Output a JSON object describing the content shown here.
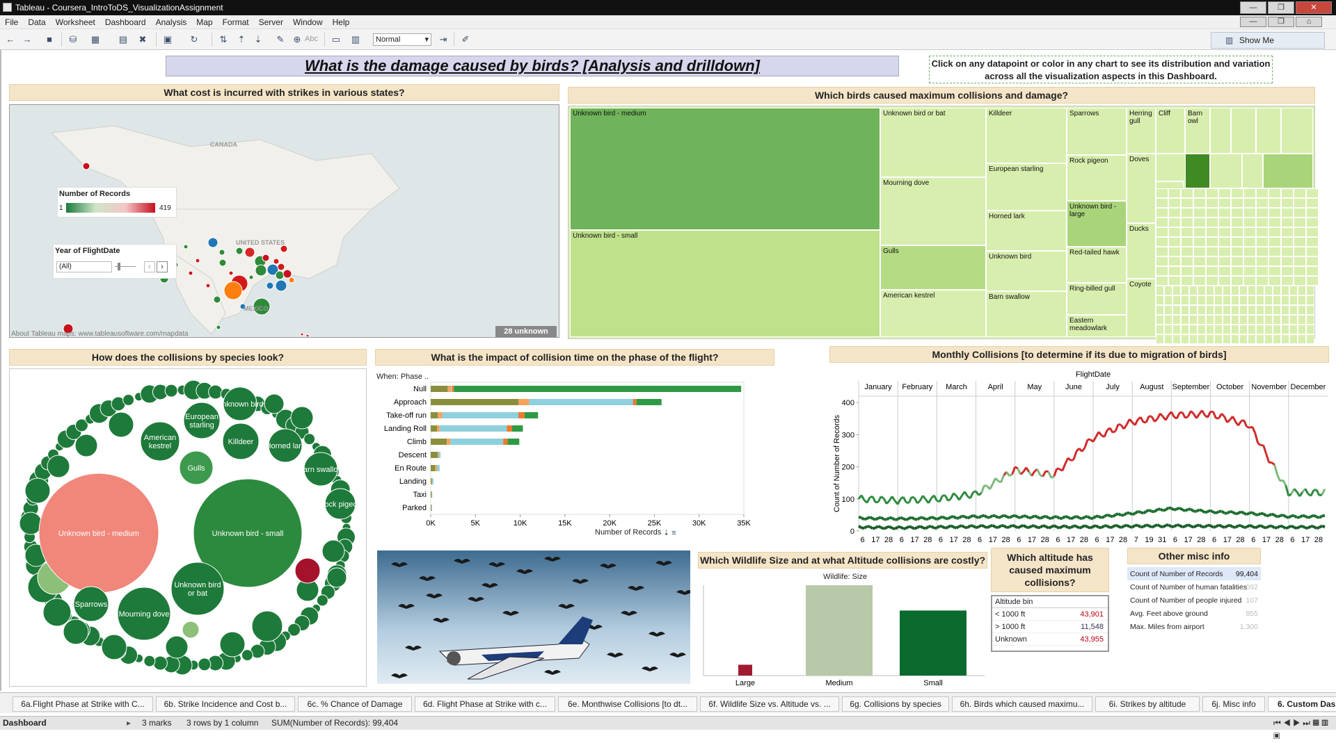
{
  "window": {
    "title": "Tableau - Coursera_IntroToDS_VisualizationAssignment"
  },
  "menu": [
    "File",
    "Data",
    "Worksheet",
    "Dashboard",
    "Analysis",
    "Map",
    "Format",
    "Server",
    "Window",
    "Help"
  ],
  "toolbar": {
    "fit_value": "Normal",
    "show_me": "Show Me",
    "abc": "Abc"
  },
  "dashboard": {
    "title": "What is the damage caused by birds? [Analysis and drilldown]",
    "instruction": "Click on any datapoint or color in any chart to see its distribution and variation across all the visualization aspects in this Dashboard.",
    "headers": {
      "states": "What cost is incurred with strikes in various states?",
      "treemap": "Which birds caused maximum collisions and damage?",
      "species": "How does the collisions by species look?",
      "phase": "What is the impact of collision time on the phase of the flight?",
      "monthly": "Monthly Collisions [to determine if its due to migration of birds]",
      "wildlife": "Which Wildlife Size and at what Altitude collisions are costly?",
      "altitude": "Which altitude has caused maximum collisions?",
      "misc": "Other misc info"
    }
  },
  "map": {
    "legend_title": "Number of Records",
    "legend_min": "1",
    "legend_max": "419",
    "year_label": "Year of FlightDate",
    "year_value": "(All)",
    "labels": {
      "canada": "CANADA",
      "us": "UNITED STATES",
      "mexico": "MEXICO"
    },
    "attribution": "About Tableau maps: www.tableausoftware.com/mapdata",
    "unknown": "28 unknown"
  },
  "treemap": {
    "cells": [
      {
        "label": "Unknown bird - medium",
        "shade": "#6fb35a"
      },
      {
        "label": "Unknown bird - small",
        "shade": "#bfe18b"
      },
      {
        "label": "Unknown bird or bat",
        "shade": "#d8eeae"
      },
      {
        "label": "Mourning dove",
        "shade": "#d8eeae"
      },
      {
        "label": "Gulls",
        "shade": "#b5dc84"
      },
      {
        "label": "American kestrel",
        "shade": "#d8eeae"
      },
      {
        "label": "Killdeer",
        "shade": "#d8eeae"
      },
      {
        "label": "European starling",
        "shade": "#d8eeae"
      },
      {
        "label": "Horned lark",
        "shade": "#d8eeae"
      },
      {
        "label": "Unknown bird",
        "shade": "#d8eeae"
      },
      {
        "label": "Barn swallow",
        "shade": "#d8eeae"
      },
      {
        "label": "Sparrows",
        "shade": "#d8eeae"
      },
      {
        "label": "Rock pigeon",
        "shade": "#d8eeae"
      },
      {
        "label": "Unknown bird - large",
        "shade": "#a9d47a"
      },
      {
        "label": "Red-tailed hawk",
        "shade": "#d8eeae"
      },
      {
        "label": "Ring-billed gull",
        "shade": "#d8eeae"
      },
      {
        "label": "Eastern meadowlark",
        "shade": "#d8eeae"
      },
      {
        "label": "Herring gull",
        "shade": "#d8eeae"
      },
      {
        "label": "Cliff",
        "shade": "#d8eeae"
      },
      {
        "label": "Barn owl",
        "shade": "#d8eeae"
      },
      {
        "label": "Doves",
        "shade": "#d8eeae"
      },
      {
        "label": "Ducks",
        "shade": "#d8eeae"
      },
      {
        "label": "Coyote",
        "shade": "#d8eeae"
      }
    ]
  },
  "bubbles": {
    "labels": [
      "Unknown bird - medium",
      "Unknown bird - small",
      "Gulls",
      "American kestrel",
      "European starling",
      "Unknown bird",
      "Killdeer",
      "Horned lark",
      "Barn swallow",
      "Rock pigeon",
      "Unknown bird or bat",
      "Mourning dove",
      "Sparrows"
    ]
  },
  "chart_data": [
    {
      "type": "bar",
      "title": "What is the impact of collision time on the phase of the flight?",
      "ylabel": "When: Phase ..",
      "xlabel": "Number of Records",
      "xlim": [
        0,
        35000
      ],
      "xticks": [
        "0K",
        "5K",
        "10K",
        "15K",
        "20K",
        "25K",
        "30K",
        "35K"
      ],
      "categories": [
        "Null",
        "Approach",
        "Take-off run",
        "Landing Roll",
        "Climb",
        "Descent",
        "En Route",
        "Landing",
        "Taxi",
        "Parked"
      ],
      "colors": [
        "#8a8f3e",
        "#f5a35a",
        "#8fd0de",
        "#e97c30",
        "#2f9a46"
      ],
      "segments": [
        [
          1900,
          400,
          100,
          200,
          32100
        ],
        [
          9800,
          1200,
          11600,
          400,
          2800
        ],
        [
          800,
          500,
          8500,
          700,
          1500
        ],
        [
          700,
          300,
          7500,
          600,
          1200
        ],
        [
          1800,
          400,
          5900,
          500,
          1300
        ],
        [
          800,
          100,
          200,
          0,
          0
        ],
        [
          500,
          200,
          300,
          0,
          0
        ],
        [
          100,
          50,
          150,
          0,
          0
        ],
        [
          80,
          20,
          50,
          0,
          0
        ],
        [
          60,
          10,
          30,
          0,
          0
        ]
      ]
    },
    {
      "type": "line",
      "title": "Monthly Collisions [to determine if its due to migration of birds]",
      "xlabel": "FlightDate",
      "ylabel": "Count of Number of Records",
      "ylim": [
        0,
        420
      ],
      "yticks": [
        0,
        100,
        200,
        300,
        400
      ],
      "categories": [
        "January",
        "February",
        "March",
        "April",
        "May",
        "June",
        "July",
        "August",
        "September",
        "October",
        "November",
        "December"
      ],
      "day_ticks": [
        "6",
        "17",
        "28",
        "6",
        "17",
        "28",
        "6",
        "17",
        "28",
        "6",
        "17",
        "28",
        "6",
        "17",
        "28",
        "6",
        "17",
        "28",
        "6",
        "17",
        "28",
        "7",
        "19",
        "31",
        "6",
        "17",
        "28",
        "6",
        "17",
        "28",
        "6",
        "17",
        "28",
        "6",
        "17",
        "28"
      ],
      "series": [
        {
          "values": [
            100,
            95,
            100,
            115,
            190,
            175,
            290,
            340,
            360,
            365,
            330,
            120
          ]
        },
        {
          "values": [
            40,
            38,
            40,
            45,
            45,
            42,
            42,
            55,
            70,
            60,
            55,
            45
          ]
        },
        {
          "values": [
            12,
            10,
            12,
            14,
            14,
            13,
            13,
            15,
            16,
            15,
            14,
            12
          ]
        }
      ]
    },
    {
      "type": "bar",
      "title": "Which Wildlife Size and at what Altitude collisions are costly?",
      "xlabel": "Wildlife: Size",
      "categories": [
        "Large",
        "Medium",
        "Small"
      ],
      "values": [
        12,
        100,
        72
      ],
      "colors": [
        "#a11a32",
        "#b7c9a8",
        "#0b6a2e"
      ]
    }
  ],
  "altitude": {
    "header": "Altitude bin",
    "rows": [
      {
        "bin": "< 1000 ft",
        "value": "43,901"
      },
      {
        "bin": "> 1000 ft",
        "value": "11,548"
      },
      {
        "bin": "Unknown",
        "value": "43,955"
      }
    ]
  },
  "misc": {
    "rows": [
      {
        "label": "Count of Number of Records",
        "value": "99,404"
      },
      {
        "label": "Count of Number of human fatalities",
        "value": "1,092"
      },
      {
        "label": "Count of Number of people injured",
        "value": "107"
      },
      {
        "label": "Avg. Feet above ground",
        "value": "855"
      },
      {
        "label": "Max. Miles from airport",
        "value": "1,300"
      }
    ]
  },
  "tabs": [
    "6a.Flight Phase at Strike with C...",
    "6b. Strike Incidence and Cost b...",
    "6c. % Chance of Damage",
    "6d. Flight Phase at Strike with c...",
    "6e. Monthwise Collisions [to dt...",
    "6f. Wildlife Size vs. Altitude vs. ...",
    "6g. Collisions by species",
    "6h. Birds which caused maximu...",
    "6i. Strikes by altitude",
    "6j. Misc info",
    "6. Custom Dashboa"
  ],
  "status": {
    "sheet": "Dashboard",
    "marks": "3 marks",
    "rows": "3 rows by 1 column",
    "sum": "SUM(Number of Records): 99,404"
  }
}
